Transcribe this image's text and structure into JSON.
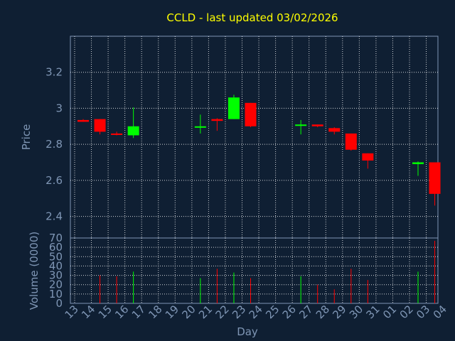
{
  "chart_data": {
    "type": "candlestick",
    "title": "CCLD - last updated 03/02/2026",
    "xlabel": "Day",
    "price_axis": {
      "ylabel": "Price",
      "ylim": [
        2.28,
        3.4
      ],
      "ticks": [
        "2.4",
        "2.6",
        "2.8",
        "3",
        "3.2"
      ]
    },
    "volume_axis": {
      "ylabel": "Volume (0000)",
      "ylim": [
        0,
        70
      ],
      "ticks": [
        "0",
        "10",
        "20",
        "30",
        "40",
        "50",
        "60",
        "70"
      ]
    },
    "x_ticks": [
      "13",
      "14",
      "15",
      "16",
      "17",
      "18",
      "19",
      "20",
      "21",
      "22",
      "23",
      "24",
      "25",
      "26",
      "27",
      "28",
      "29",
      "30",
      "31",
      "01",
      "02",
      "03",
      "04"
    ],
    "grid": true,
    "colors": {
      "background": "#0f1f33",
      "up": "#00ff00",
      "down": "#ff0000",
      "grid": "#ffffff",
      "axis_text": "#7f96b5",
      "title": "#ffff00"
    },
    "candles": [
      {
        "x": "13",
        "open": 2.935,
        "high": 2.94,
        "low": 2.925,
        "close": 2.925,
        "volume": 0
      },
      {
        "x": "14",
        "open": 2.94,
        "high": 2.94,
        "low": 2.855,
        "close": 2.87,
        "volume": 30
      },
      {
        "x": "15",
        "open": 2.86,
        "high": 2.87,
        "low": 2.85,
        "close": 2.855,
        "volume": 29
      },
      {
        "x": "16",
        "open": 2.85,
        "high": 3.005,
        "low": 2.835,
        "close": 2.9,
        "volume": 34
      },
      {
        "x": "20",
        "open": 2.895,
        "high": 2.965,
        "low": 2.86,
        "close": 2.9,
        "volume": 27
      },
      {
        "x": "21",
        "open": 2.94,
        "high": 2.945,
        "low": 2.875,
        "close": 2.93,
        "volume": 37
      },
      {
        "x": "22",
        "open": 2.94,
        "high": 3.075,
        "low": 2.94,
        "close": 3.06,
        "volume": 33
      },
      {
        "x": "23",
        "open": 3.03,
        "high": 3.03,
        "low": 2.895,
        "close": 2.9,
        "volume": 27
      },
      {
        "x": "26",
        "open": 2.905,
        "high": 2.935,
        "low": 2.855,
        "close": 2.91,
        "volume": 29
      },
      {
        "x": "27",
        "open": 2.91,
        "high": 2.91,
        "low": 2.895,
        "close": 2.9,
        "volume": 20
      },
      {
        "x": "28",
        "open": 2.89,
        "high": 2.895,
        "low": 2.855,
        "close": 2.87,
        "volume": 15
      },
      {
        "x": "29",
        "open": 2.86,
        "high": 2.86,
        "low": 2.765,
        "close": 2.77,
        "volume": 37
      },
      {
        "x": "30",
        "open": 2.75,
        "high": 2.75,
        "low": 2.665,
        "close": 2.71,
        "volume": 25
      },
      {
        "x": "02",
        "open": 2.69,
        "high": 2.705,
        "low": 2.625,
        "close": 2.7,
        "volume": 34
      },
      {
        "x": "03",
        "open": 2.7,
        "high": 2.7,
        "low": 2.46,
        "close": 2.525,
        "volume": 67
      }
    ]
  }
}
